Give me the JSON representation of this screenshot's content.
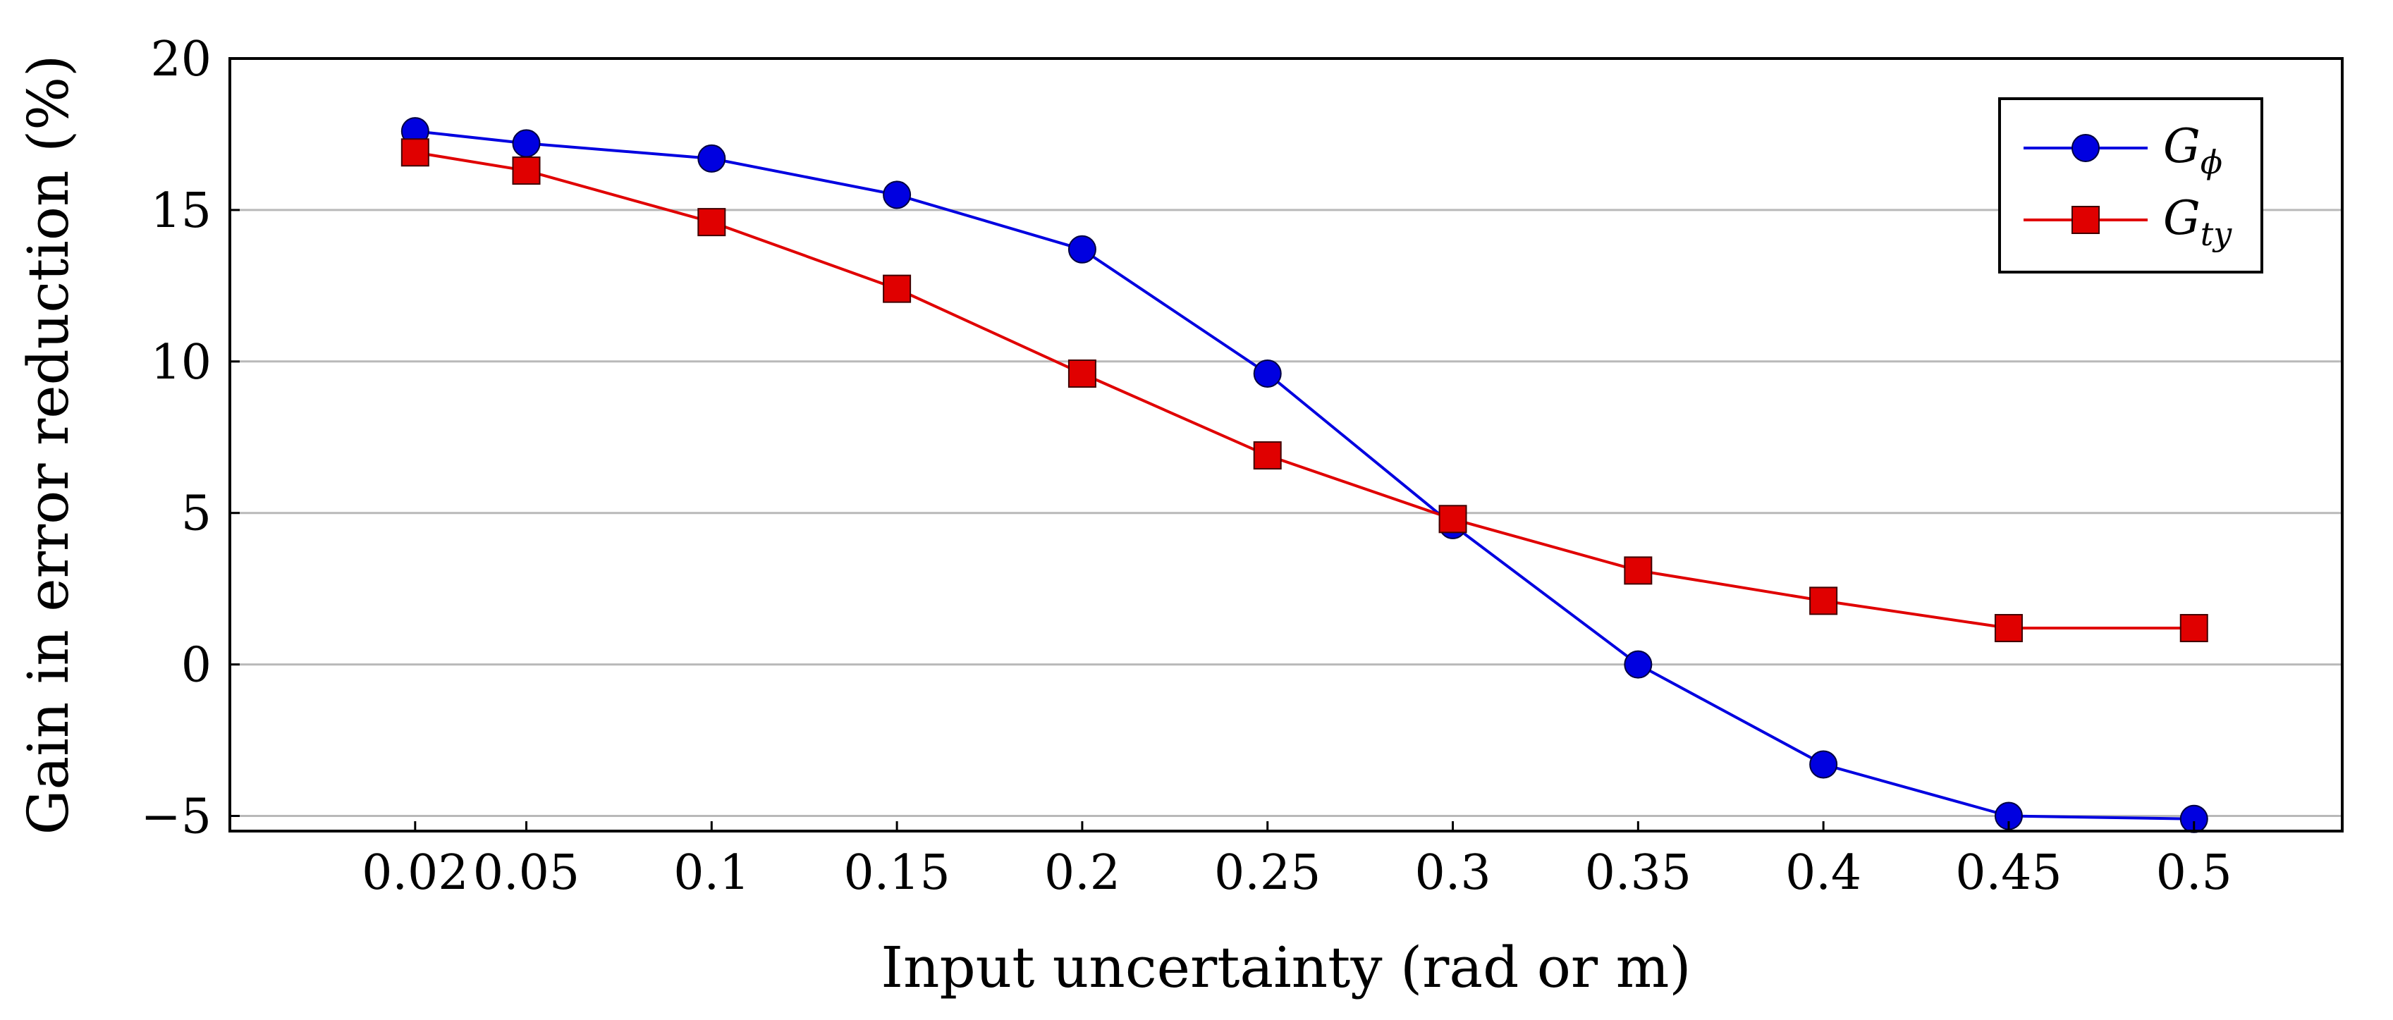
{
  "chart_data": {
    "type": "line",
    "title": "",
    "xlabel": "Input uncertainty (rad or m)",
    "ylabel": "Gain in error reduction (%)",
    "x": [
      0.02,
      0.05,
      0.1,
      0.15,
      0.2,
      0.25,
      0.3,
      0.35,
      0.4,
      0.45,
      0.5
    ],
    "x_tick_labels": [
      "0.02",
      "0.05",
      "0.1",
      "0.15",
      "0.2",
      "0.25",
      "0.3",
      "0.35",
      "0.4",
      "0.45",
      "0.5"
    ],
    "xlim": [
      -0.03,
      0.54
    ],
    "ylim": [
      -5.5,
      20
    ],
    "y_ticks": [
      -5,
      0,
      5,
      10,
      15,
      20
    ],
    "y_tick_labels": [
      "−5",
      "0",
      "5",
      "10",
      "15",
      "20"
    ],
    "grid": "horizontal",
    "legend_position": "top-right",
    "series": [
      {
        "name": "G_ϕ",
        "legend_main": "G",
        "legend_sub": "ϕ",
        "color": "#0000e0",
        "marker": "circle",
        "values": [
          17.6,
          17.2,
          16.7,
          15.5,
          13.7,
          9.6,
          4.6,
          0.0,
          -3.3,
          -5.0,
          -5.1
        ]
      },
      {
        "name": "G_ty",
        "legend_main": "G",
        "legend_sub": "ty",
        "color": "#e00000",
        "marker": "square",
        "values": [
          16.9,
          16.3,
          14.6,
          12.4,
          9.6,
          6.9,
          4.8,
          3.1,
          2.1,
          1.2,
          1.2
        ]
      }
    ]
  }
}
